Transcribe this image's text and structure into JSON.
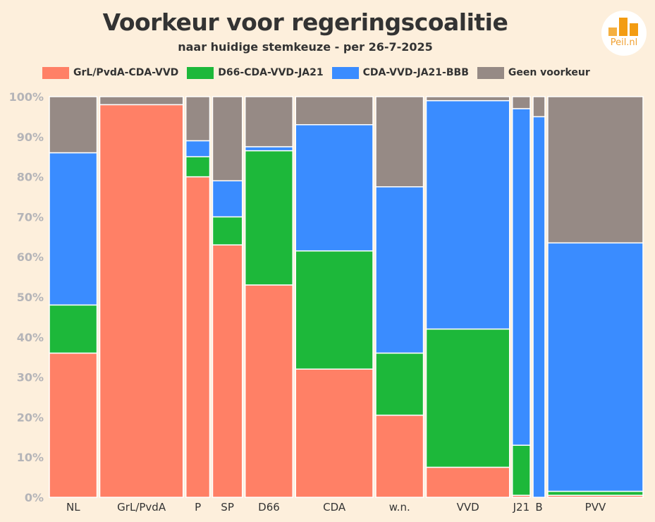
{
  "title": "Voorkeur voor regeringscoalitie",
  "subtitle": "naar huidige stemkeuze - per 26-7-2025",
  "logo": {
    "text": "Peil.nl"
  },
  "colors": {
    "background": "#fdefdc",
    "series": [
      "#ff8066",
      "#1db83a",
      "#3a8cff",
      "#968a85"
    ]
  },
  "chart_data": {
    "type": "bar",
    "variant": "mosaic / 100% stacked with variable bar widths",
    "categories": [
      "NL",
      "GrL/PvdA",
      "P",
      "SP",
      "D66",
      "CDA",
      "w.n.",
      "VVD",
      "J21",
      "B",
      "PVV"
    ],
    "widths": [
      8,
      14,
      4,
      5,
      8,
      13,
      8,
      14,
      3,
      2,
      16
    ],
    "series": [
      {
        "name": "GrL/PvdA-CDA-VVD",
        "values": [
          36,
          98,
          80,
          63,
          53,
          32,
          20.5,
          7.5,
          0.5,
          0,
          0.5
        ]
      },
      {
        "name": "D66-CDA-VVD-JA21",
        "values": [
          12,
          0,
          5,
          7,
          33.5,
          29.5,
          15.5,
          34.5,
          12.5,
          0,
          1
        ]
      },
      {
        "name": "CDA-VVD-JA21-BBB",
        "values": [
          38,
          0,
          4,
          9,
          1,
          31.5,
          41.5,
          57,
          84,
          95,
          62
        ]
      },
      {
        "name": "Geen voorkeur",
        "values": [
          14,
          2,
          11,
          21,
          12.5,
          7,
          22.5,
          1,
          3,
          5,
          36.5
        ]
      }
    ],
    "yticks": [
      "0%",
      "10%",
      "20%",
      "30%",
      "40%",
      "50%",
      "60%",
      "70%",
      "80%",
      "90%",
      "100%"
    ],
    "ylim": [
      0,
      100
    ],
    "xlabel": "",
    "ylabel": "",
    "legend_position": "top",
    "grid": false
  }
}
